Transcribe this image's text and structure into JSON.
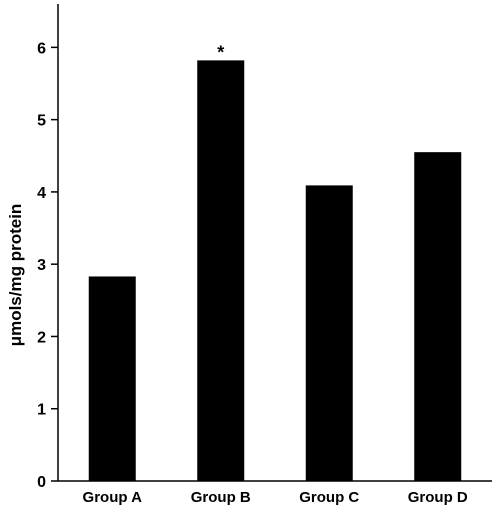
{
  "chart_data": {
    "type": "bar",
    "categories": [
      "Group A",
      "Group B",
      "Group C",
      "Group D"
    ],
    "values": [
      2.83,
      5.82,
      4.09,
      4.55
    ],
    "title": "",
    "xlabel": "",
    "ylabel": "μmols/mg protein",
    "ylim": [
      0,
      6.6
    ],
    "yticks": [
      "0",
      "1",
      "2",
      "3",
      "4",
      "5",
      "6"
    ],
    "annotations": [
      {
        "category": "Group B",
        "text": "*"
      }
    ],
    "grid": false,
    "legend": "none",
    "colors": {
      "bar": "#000000",
      "axis": "#000000",
      "background": "#ffffff"
    }
  }
}
